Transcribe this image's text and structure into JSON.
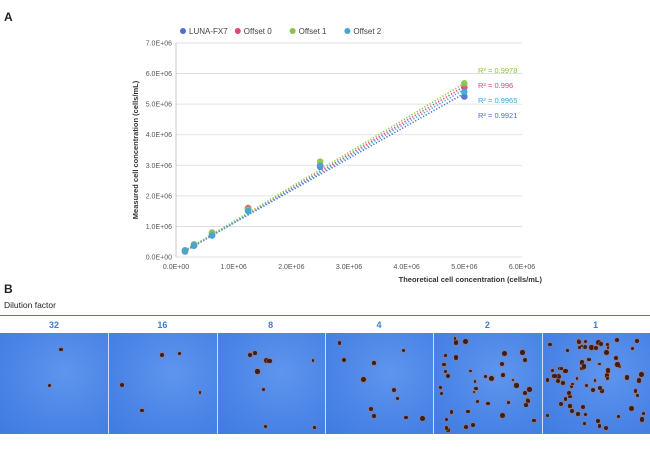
{
  "panels": {
    "a": "A",
    "b": "B"
  },
  "chart_data": {
    "type": "scatter",
    "xlabel": "Theoretical cell  concentration (cells/mL)",
    "ylabel": "Measured cell concentration (cells/mL)",
    "xlim": [
      0,
      6000000
    ],
    "ylim": [
      0,
      7000000
    ],
    "x_ticks": [
      "0.0E+00",
      "1.0E+06",
      "2.0E+06",
      "3.0E+06",
      "4.0E+06",
      "5.0E+06",
      "6.0E+06"
    ],
    "y_ticks": [
      "0.0E+00",
      "1.0E+06",
      "2.0E+06",
      "3.0E+06",
      "4.0E+06",
      "5.0E+06",
      "6.0E+06",
      "7.0E+06"
    ],
    "y_tick_values": [
      0,
      1000000,
      2000000,
      3000000,
      4000000,
      5000000,
      6000000,
      7000000
    ],
    "x_tick_values": [
      0,
      1000000,
      2000000,
      3000000,
      4000000,
      5000000,
      6000000
    ],
    "grid": "horizontal",
    "legend_position": "top",
    "x": [
      156250,
      312500,
      625000,
      1250000,
      2500000,
      5000000
    ],
    "series": [
      {
        "name": "LUNA-FX7",
        "color": "#4a6fd1",
        "values": [
          220000,
          370000,
          720000,
          1550000,
          2950000,
          5250000
        ],
        "r2": "R² = 0.9921",
        "fit_end": 5350000
      },
      {
        "name": "Offset 0",
        "color": "#e0437d",
        "values": [
          180000,
          400000,
          780000,
          1600000,
          3000000,
          5550000
        ],
        "r2": "R² = 0.996",
        "fit_end": 5580000
      },
      {
        "name": "Offset 1",
        "color": "#8bc34a",
        "values": [
          210000,
          420000,
          800000,
          1560000,
          3120000,
          5680000
        ],
        "r2": "R² = 0.9978",
        "fit_end": 5680000
      },
      {
        "name": "Offset 2",
        "color": "#42a5d8",
        "values": [
          190000,
          380000,
          700000,
          1500000,
          2980000,
          5400000
        ],
        "r2": "R² = 0.9965",
        "fit_end": 5480000
      }
    ]
  },
  "panel_b": {
    "title": "Dilution factor",
    "factors": [
      "32",
      "16",
      "8",
      "4",
      "2",
      "1"
    ],
    "densities": [
      2,
      5,
      9,
      11,
      40,
      70
    ]
  }
}
